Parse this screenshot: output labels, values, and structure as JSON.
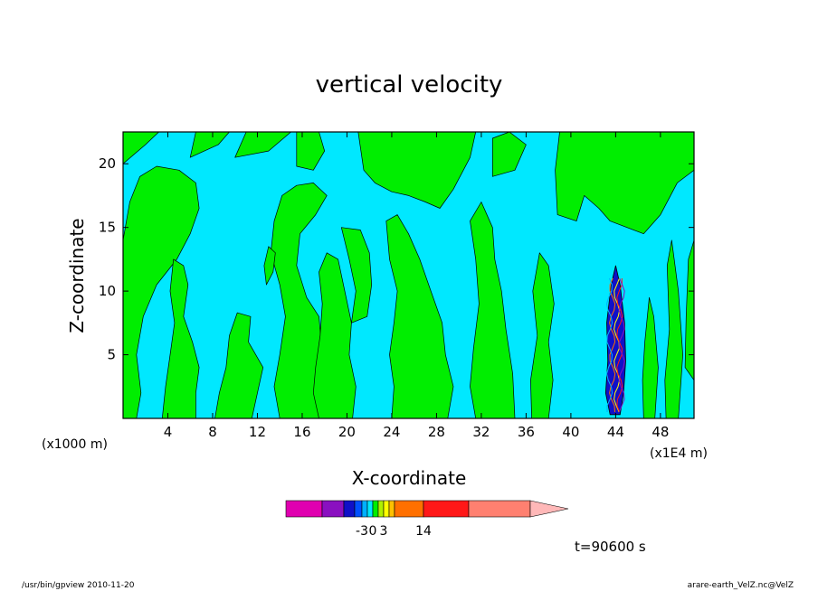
{
  "chart_data": {
    "type": "heatmap",
    "title": "vertical velocity",
    "xlabel": "X-coordinate",
    "ylabel": "Z-coordinate",
    "x_unit_left": "(x1000 m)",
    "x_unit_right": "(x1E4 m)",
    "xlim": [
      0,
      51
    ],
    "ylim": [
      0,
      22.5
    ],
    "x_ticks": [
      {
        "value": 4,
        "label": "4"
      },
      {
        "value": 8,
        "label": "8"
      },
      {
        "value": 12,
        "label": "12"
      },
      {
        "value": 16,
        "label": "16"
      },
      {
        "value": 20,
        "label": "20"
      },
      {
        "value": 24,
        "label": "24"
      },
      {
        "value": 28,
        "label": "28"
      },
      {
        "value": 32,
        "label": "32"
      },
      {
        "value": 36,
        "label": "36"
      },
      {
        "value": 40,
        "label": "40"
      },
      {
        "value": 44,
        "label": "44"
      },
      {
        "value": 48,
        "label": "48"
      }
    ],
    "y_ticks": [
      {
        "value": 5,
        "label": "5"
      },
      {
        "value": 10,
        "label": "10"
      },
      {
        "value": 15,
        "label": "15"
      },
      {
        "value": 20,
        "label": "20"
      }
    ],
    "colors": {
      "negative": "#00e8ff",
      "positive": "#00ee00",
      "contour_line": "#000000"
    },
    "updraft_core": {
      "x": 44,
      "z_top": 12,
      "label": "44"
    },
    "colorbar": {
      "colors": [
        "#e000b0",
        "#8a10c0",
        "#1010c8",
        "#0050ff",
        "#00b0ff",
        "#00e8ff",
        "#00ee00",
        "#b0f000",
        "#ffff00",
        "#ffc000",
        "#ff7000",
        "#ff1818",
        "#ff8070",
        "#ffb8b8"
      ],
      "labels": [
        {
          "index": 4,
          "label": "-3"
        },
        {
          "index": 6,
          "label": "0"
        },
        {
          "index": 8,
          "label": "3"
        },
        {
          "index": 11,
          "label": "14"
        }
      ]
    },
    "time_label": "t=90600 s"
  },
  "footer": {
    "left": "/usr/bin/gpview  2010-11-20",
    "right": "arare-earth_VelZ.nc@VelZ"
  }
}
